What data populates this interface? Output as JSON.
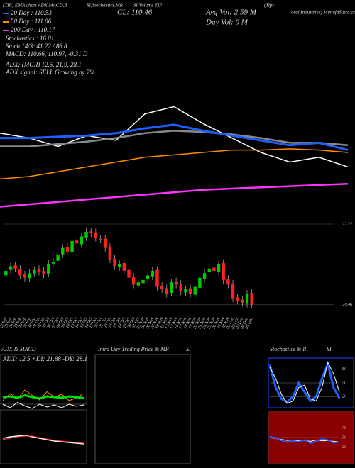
{
  "header": {
    "title_parts": [
      "(TIP) EMA chart ADX,MACD,B",
      "SI,Stochastics,MR",
      "SI,Volume TIP",
      "(Tipc",
      "oral Industries) MunafaSutra.com"
    ],
    "close": "CL: 110.46",
    "avg_vol": "Avg Vol: 2.59 M",
    "day_vol": "Day Vol: 0 M"
  },
  "legend": [
    "20 Day : 110.53",
    "50 Day : 111.06",
    "200 Day : 110.17"
  ],
  "indicators": [
    "Stochastics : 16.01",
    "Stoch 14/3: 41.22 / 86.8",
    "MACD: 110.66, 110.97, -0.31 D"
  ],
  "adx": [
    "ADX: (MGR) 12.5, 21.9, 28.1",
    "ADX signal: SELL Growing by 7%"
  ],
  "panels": {
    "adx_macd": {
      "title": "ADX & MACD",
      "info": "ADX: 12.5 +DI: 21.88 -DY: 28.1"
    },
    "intraday": {
      "title": "Intra Day Trading Price & MR",
      "suffix": "SI"
    },
    "stoch_rsi": {
      "title": "Stochastics & R",
      "suffix": "SI"
    }
  },
  "chart_data": [
    {
      "type": "line",
      "ylim": [
        0,
        100
      ],
      "series": [
        {
          "color": "#ffffff",
          "width": 1.5,
          "values": [
            66,
            62,
            55,
            64,
            60,
            82,
            88,
            74,
            62,
            50,
            42,
            46,
            38
          ]
        },
        {
          "color": "#888888",
          "width": 2.5,
          "values": [
            55,
            55,
            57,
            59,
            62,
            66,
            68,
            67,
            65,
            62,
            58,
            58,
            56
          ]
        },
        {
          "color": "#1f5fff",
          "width": 3,
          "values": [
            62,
            62,
            63,
            64,
            66,
            70,
            73,
            68,
            64,
            60,
            56,
            58,
            52
          ]
        },
        {
          "color": "#ff8c00",
          "width": 1.5,
          "values": [
            28,
            30,
            34,
            38,
            42,
            46,
            48,
            50,
            52,
            52,
            53,
            52,
            50
          ]
        },
        {
          "color": "#ff33ff",
          "width": 2.5,
          "values": [
            5,
            7,
            9,
            11,
            13,
            15,
            17,
            19,
            20,
            21,
            22,
            23,
            24
          ]
        }
      ]
    },
    {
      "type": "candlestick",
      "up_color": "#00cc00",
      "down_color": "#ff2020",
      "ylim": [
        110.38,
        112.22
      ],
      "yticks": [
        112.22,
        110.46
      ],
      "categories": [
        "22 Sep",
        "23 Sep",
        "24 Sep",
        "25 Sep",
        "26 Sep",
        "29 Sep",
        "30 Sep",
        "01 Oct",
        "02 Oct",
        "03 Oct",
        "06 Oct",
        "07 Oct",
        "08 Oct",
        "09 Oct",
        "10 Oct",
        "13 Oct",
        "14 Oct",
        "15 Oct",
        "16 Oct",
        "17 Oct",
        "20 Oct",
        "21 Oct",
        "23 Oct",
        "24 Oct",
        "27 Oct",
        "28 Oct",
        "29 Oct",
        "30 Oct",
        "31 Oct",
        "03 Nov",
        "04 Nov",
        "06 Nov",
        "07 Nov",
        "10 Nov",
        "11 Nov",
        "12 Nov",
        "13 Nov",
        "14 Nov",
        "17 Nov",
        "18 Nov",
        "19 Nov",
        "20 Nov",
        "21 Nov",
        "24 Nov",
        "25 Nov",
        "26 Nov",
        "27 Nov",
        "28 Nov",
        "01 Dec",
        "02 Dec",
        "03 Dec",
        "04 Dec",
        "05 Dec"
      ],
      "open": [
        111.1,
        111.22,
        111.32,
        111.24,
        111.12,
        111.04,
        111.14,
        111.24,
        111.2,
        111.14,
        111.36,
        111.42,
        111.56,
        111.72,
        111.6,
        111.86,
        111.78,
        111.93,
        112.06,
        112.04,
        111.9,
        111.9,
        111.72,
        111.47,
        111.28,
        111.37,
        111.22,
        111.07,
        110.88,
        110.93,
        111.02,
        111.08,
        111.22,
        110.87,
        110.82,
        110.72,
        110.97,
        110.92,
        110.73,
        110.82,
        110.68,
        110.83,
        111.03,
        111.17,
        111.27,
        111.18,
        111.37,
        111.02,
        110.92,
        110.62,
        110.57,
        110.48,
        110.72
      ],
      "high": [
        111.28,
        111.38,
        111.4,
        111.32,
        111.2,
        111.23,
        111.3,
        111.32,
        111.28,
        111.43,
        111.48,
        111.63,
        111.78,
        111.8,
        111.93,
        111.94,
        112.03,
        112.13,
        112.14,
        112.12,
        111.98,
        111.98,
        111.8,
        111.55,
        111.43,
        111.45,
        111.3,
        111.15,
        111.03,
        111.08,
        111.18,
        111.28,
        111.3,
        110.95,
        110.9,
        111.03,
        111.05,
        111.0,
        110.88,
        110.9,
        110.93,
        111.13,
        111.23,
        111.33,
        111.35,
        111.43,
        111.45,
        111.1,
        111.0,
        110.7,
        110.65,
        110.78,
        110.8
      ],
      "low": [
        111.02,
        111.14,
        111.17,
        111.02,
        110.97,
        110.96,
        111.06,
        111.1,
        111.04,
        111.06,
        111.28,
        111.34,
        111.48,
        111.54,
        111.52,
        111.72,
        111.7,
        111.85,
        111.94,
        111.84,
        111.8,
        111.62,
        111.37,
        111.22,
        111.2,
        111.12,
        110.97,
        110.82,
        110.8,
        110.85,
        110.94,
        111.0,
        110.77,
        110.72,
        110.62,
        110.64,
        110.82,
        110.67,
        110.65,
        110.62,
        110.6,
        110.75,
        110.95,
        111.09,
        111.12,
        111.1,
        110.92,
        110.82,
        110.52,
        110.47,
        110.42,
        110.4,
        110.38
      ],
      "close": [
        111.2,
        111.3,
        111.25,
        111.1,
        111.05,
        111.15,
        111.22,
        111.18,
        111.12,
        111.35,
        111.4,
        111.55,
        111.7,
        111.62,
        111.85,
        111.8,
        111.95,
        112.05,
        112.02,
        111.92,
        111.88,
        111.7,
        111.45,
        111.3,
        111.35,
        111.2,
        111.05,
        110.9,
        110.95,
        111.0,
        111.1,
        111.2,
        110.85,
        110.8,
        110.7,
        110.95,
        110.9,
        110.75,
        110.8,
        110.7,
        110.85,
        111.05,
        111.15,
        111.25,
        111.2,
        111.35,
        111.0,
        110.9,
        110.6,
        110.55,
        110.5,
        110.7,
        110.46
      ]
    },
    {
      "type": "line",
      "ylim": [
        0,
        100
      ],
      "series": [
        {
          "color": "#ff8c00",
          "width": 1,
          "values": [
            40,
            60,
            45,
            70,
            55,
            42,
            65,
            50,
            58,
            40,
            48,
            60
          ]
        },
        {
          "color": "#00dd00",
          "width": 3,
          "values": [
            50,
            52,
            48,
            55,
            50,
            46,
            52,
            50,
            48,
            52,
            50,
            47
          ]
        },
        {
          "color": "#ffffff",
          "width": 1,
          "values": [
            30,
            20,
            35,
            25,
            18,
            30,
            22,
            28,
            20,
            30,
            24,
            28
          ]
        }
      ]
    },
    {
      "type": "line",
      "ylim": [
        -1,
        1
      ],
      "series": [
        {
          "color": "#ffffff",
          "width": 1.5,
          "values": [
            0.1,
            0.2,
            0.25,
            0.3,
            0.2,
            0.1,
            0.0,
            -0.1,
            -0.15,
            -0.2,
            -0.25,
            -0.3
          ]
        },
        {
          "color": "#ff3333",
          "width": 1,
          "values": [
            0.0,
            0.1,
            0.2,
            0.25,
            0.25,
            0.15,
            0.05,
            -0.05,
            -0.1,
            -0.15,
            -0.2,
            -0.25
          ]
        }
      ]
    },
    {
      "type": "line",
      "ylim": [
        0,
        100
      ],
      "yticks": [
        80,
        50,
        20
      ],
      "series": [
        {
          "color": "#1f5fff",
          "width": 3,
          "values": [
            90,
            40,
            15,
            8,
            20,
            50,
            30,
            10,
            20,
            60,
            92,
            40,
            16
          ]
        },
        {
          "color": "#ffffff",
          "width": 1,
          "values": [
            85,
            60,
            25,
            5,
            10,
            40,
            45,
            15,
            10,
            40,
            95,
            70,
            30
          ]
        }
      ]
    },
    {
      "type": "line",
      "ylim": [
        0,
        100
      ],
      "yticks": [
        70,
        50,
        30
      ],
      "series": [
        {
          "color": "#ffffff",
          "width": 1,
          "values": [
            50,
            48,
            46,
            44,
            45,
            43,
            44,
            42,
            45,
            43,
            44,
            42,
            41
          ]
        },
        {
          "color": "#1f5fff",
          "width": 2,
          "values": [
            52,
            49,
            44,
            40,
            43,
            41,
            45,
            38,
            42,
            47,
            45,
            39,
            41
          ]
        }
      ]
    }
  ]
}
